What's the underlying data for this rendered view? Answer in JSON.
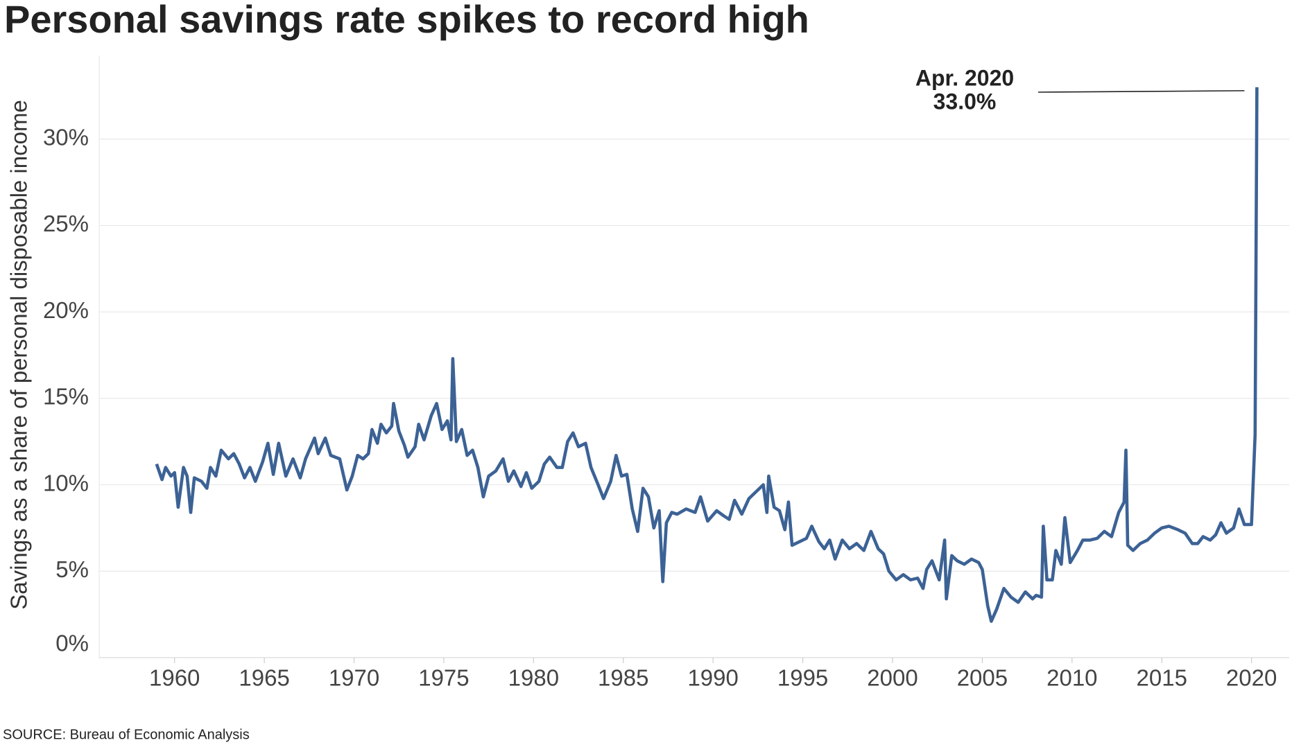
{
  "chart_data": {
    "type": "line",
    "title": "Personal savings rate spikes to record high",
    "y_label": "Savings as a share of personal disposable income",
    "source": "SOURCE: Bureau of Economic Analysis",
    "annotation": {
      "date": "Apr. 2020",
      "text": "33.0%"
    },
    "color": "#3c6295",
    "grid": true,
    "xlim": [
      1955.8,
      2022.1
    ],
    "xticks": [
      1960,
      1965,
      1970,
      1975,
      1980,
      1985,
      1990,
      1995,
      2000,
      2005,
      2010,
      2015,
      2020
    ],
    "ylim": [
      0,
      35
    ],
    "yticks": [
      {
        "value": 0,
        "label": "0%"
      },
      {
        "value": 5,
        "label": "5%"
      },
      {
        "value": 10,
        "label": "10%"
      },
      {
        "value": 15,
        "label": "15%"
      },
      {
        "value": 20,
        "label": "20%"
      },
      {
        "value": 25,
        "label": "25%"
      },
      {
        "value": 30,
        "label": "30%"
      }
    ],
    "x": [
      1959.0,
      1959.3,
      1959.5,
      1959.8,
      1960.0,
      1960.2,
      1960.5,
      1960.7,
      1960.9,
      1961.1,
      1961.5,
      1961.8,
      1962.0,
      1962.3,
      1962.6,
      1963.0,
      1963.3,
      1963.6,
      1963.9,
      1964.2,
      1964.5,
      1964.9,
      1965.2,
      1965.5,
      1965.8,
      1966.2,
      1966.6,
      1967.0,
      1967.3,
      1967.8,
      1968.0,
      1968.4,
      1968.7,
      1969.2,
      1969.6,
      1969.9,
      1970.2,
      1970.5,
      1970.8,
      1971.0,
      1971.3,
      1971.5,
      1971.8,
      1972.1,
      1972.2,
      1972.5,
      1972.8,
      1973.0,
      1973.4,
      1973.6,
      1973.9,
      1974.3,
      1974.6,
      1974.9,
      1975.2,
      1975.4,
      1975.5,
      1975.7,
      1976.0,
      1976.3,
      1976.6,
      1976.9,
      1977.2,
      1977.5,
      1977.9,
      1978.3,
      1978.6,
      1978.9,
      1979.3,
      1979.6,
      1979.9,
      1980.3,
      1980.6,
      1980.9,
      1981.3,
      1981.6,
      1981.9,
      1982.2,
      1982.5,
      1982.9,
      1983.2,
      1983.6,
      1983.9,
      1984.3,
      1984.6,
      1984.9,
      1985.2,
      1985.5,
      1985.8,
      1986.1,
      1986.4,
      1986.7,
      1987.0,
      1987.2,
      1987.4,
      1987.7,
      1988.0,
      1988.5,
      1989.0,
      1989.3,
      1989.7,
      1990.2,
      1990.6,
      1990.9,
      1991.2,
      1991.6,
      1992.0,
      1992.4,
      1992.8,
      1993.0,
      1993.1,
      1993.4,
      1993.7,
      1994.0,
      1994.2,
      1994.4,
      1994.8,
      1995.2,
      1995.5,
      1995.9,
      1996.2,
      1996.5,
      1996.8,
      1997.2,
      1997.6,
      1998.0,
      1998.4,
      1998.8,
      1999.2,
      1999.5,
      1999.8,
      2000.2,
      2000.6,
      2001.0,
      2001.4,
      2001.7,
      2001.9,
      2002.2,
      2002.6,
      2002.9,
      2003.0,
      2003.3,
      2003.6,
      2004.0,
      2004.4,
      2004.8,
      2005.0,
      2005.3,
      2005.5,
      2005.8,
      2006.2,
      2006.6,
      2007.0,
      2007.4,
      2007.8,
      2008.0,
      2008.3,
      2008.4,
      2008.6,
      2008.9,
      2009.1,
      2009.4,
      2009.6,
      2009.9,
      2010.3,
      2010.6,
      2011.0,
      2011.4,
      2011.8,
      2012.2,
      2012.6,
      2012.9,
      2013.0,
      2013.1,
      2013.4,
      2013.8,
      2014.2,
      2014.6,
      2015.0,
      2015.4,
      2015.9,
      2016.3,
      2016.7,
      2017.0,
      2017.3,
      2017.7,
      2018.0,
      2018.3,
      2018.6,
      2019.0,
      2019.3,
      2019.6,
      2020.0,
      2020.2,
      2020.3
    ],
    "values": [
      11.2,
      10.3,
      11.0,
      10.5,
      10.7,
      8.7,
      11.0,
      10.5,
      8.4,
      10.4,
      10.2,
      9.8,
      11.0,
      10.5,
      12.0,
      11.5,
      11.8,
      11.2,
      10.4,
      11.0,
      10.2,
      11.3,
      12.4,
      10.6,
      12.4,
      10.5,
      11.5,
      10.4,
      11.5,
      12.7,
      11.8,
      12.7,
      11.7,
      11.5,
      9.7,
      10.5,
      11.7,
      11.5,
      11.8,
      13.2,
      12.4,
      13.5,
      13.0,
      13.4,
      14.7,
      13.1,
      12.3,
      11.6,
      12.2,
      13.5,
      12.6,
      14.0,
      14.7,
      13.2,
      13.7,
      12.6,
      17.3,
      12.5,
      13.2,
      11.7,
      12.0,
      11.0,
      9.3,
      10.5,
      10.8,
      11.5,
      10.2,
      10.8,
      9.9,
      10.7,
      9.8,
      10.2,
      11.2,
      11.6,
      11.0,
      11.0,
      12.5,
      13.0,
      12.2,
      12.4,
      11.0,
      10.0,
      9.2,
      10.2,
      11.7,
      10.5,
      10.6,
      8.6,
      7.3,
      9.8,
      9.3,
      7.5,
      8.5,
      4.4,
      7.8,
      8.4,
      8.3,
      8.6,
      8.4,
      9.3,
      7.9,
      8.5,
      8.2,
      8.0,
      9.1,
      8.3,
      9.2,
      9.6,
      10.0,
      8.4,
      10.5,
      8.7,
      8.5,
      7.4,
      9.0,
      6.5,
      6.7,
      6.9,
      7.6,
      6.7,
      6.3,
      6.8,
      5.7,
      6.8,
      6.3,
      6.6,
      6.2,
      7.3,
      6.3,
      6.0,
      5.0,
      4.5,
      4.8,
      4.5,
      4.6,
      4.0,
      5.1,
      5.6,
      4.5,
      6.8,
      3.4,
      5.9,
      5.6,
      5.4,
      5.7,
      5.5,
      5.1,
      3.0,
      2.1,
      2.8,
      4.0,
      3.5,
      3.2,
      3.8,
      3.4,
      3.6,
      3.5,
      7.6,
      4.5,
      4.5,
      6.2,
      5.4,
      8.1,
      5.5,
      6.2,
      6.8,
      6.8,
      6.9,
      7.3,
      7.0,
      8.4,
      9.0,
      12.0,
      6.5,
      6.2,
      6.6,
      6.8,
      7.2,
      7.5,
      7.6,
      7.4,
      7.2,
      6.6,
      6.6,
      7.0,
      6.8,
      7.1,
      7.8,
      7.2,
      7.5,
      8.6,
      7.7,
      7.7,
      12.9,
      33.0
    ]
  }
}
